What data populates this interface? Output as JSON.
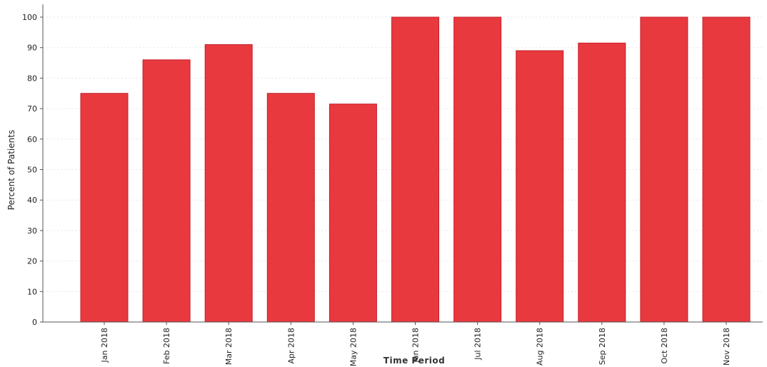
{
  "chart_data": {
    "type": "bar",
    "categories": [
      "Jan 2018",
      "Feb 2018",
      "Mar 2018",
      "Apr 2018",
      "May 2018",
      "Jun 2018",
      "Jul 2018",
      "Aug 2018",
      "Sep 2018",
      "Oct 2018",
      "Nov 2018"
    ],
    "values": [
      75,
      86,
      91,
      75,
      71.5,
      100,
      100,
      89,
      91.5,
      100,
      100
    ],
    "title": "",
    "xlabel": "Time Period",
    "ylabel": "Percent of Patients",
    "ylim": [
      0,
      100
    ],
    "yticks": [
      "0",
      "10",
      "20",
      "30",
      "40",
      "50",
      "60",
      "70",
      "80",
      "90",
      "100"
    ],
    "grid": true,
    "bar_color": "#e8393f",
    "bar_edge_color": "#c41f29"
  }
}
